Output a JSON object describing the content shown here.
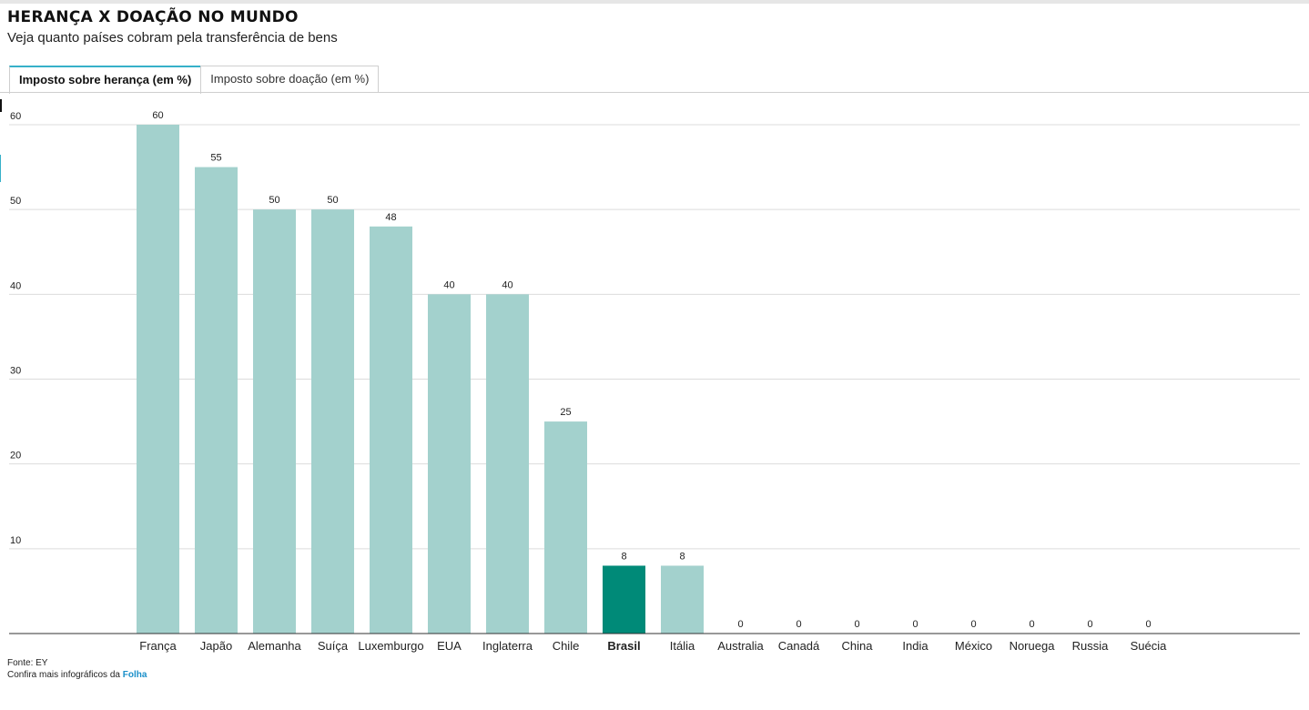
{
  "header": {
    "title": "HERANÇA X DOAÇÃO NO MUNDO",
    "subtitle": "Veja quanto países cobram pela transferência de bens"
  },
  "tabs": [
    {
      "label": "Imposto sobre herança (em %)",
      "active": true
    },
    {
      "label": "Imposto sobre doação (em %)",
      "active": false
    }
  ],
  "chart_data": {
    "type": "bar",
    "categories": [
      "França",
      "Japão",
      "Alemanha",
      "Suíça",
      "Luxemburgo",
      "EUA",
      "Inglaterra",
      "Chile",
      "Brasil",
      "Itália",
      "Australia",
      "Canadá",
      "China",
      "India",
      "México",
      "Noruega",
      "Russia",
      "Suécia"
    ],
    "values": [
      60,
      55,
      50,
      50,
      48,
      40,
      40,
      25,
      8,
      8,
      0,
      0,
      0,
      0,
      0,
      0,
      0,
      0
    ],
    "highlight_category": "Brasil",
    "yticks": [
      10,
      20,
      30,
      40,
      50,
      60
    ],
    "ylim": [
      0,
      60
    ],
    "grid": true,
    "colors": {
      "bar": "#a3d1cd",
      "highlight": "#008a78",
      "grid": "#dcdcdc",
      "axis": "#333333",
      "text": "#222222"
    }
  },
  "footer": {
    "source": "Fonte: EY",
    "more_prefix": "Confira mais infográficos da",
    "more_link": "Folha"
  }
}
